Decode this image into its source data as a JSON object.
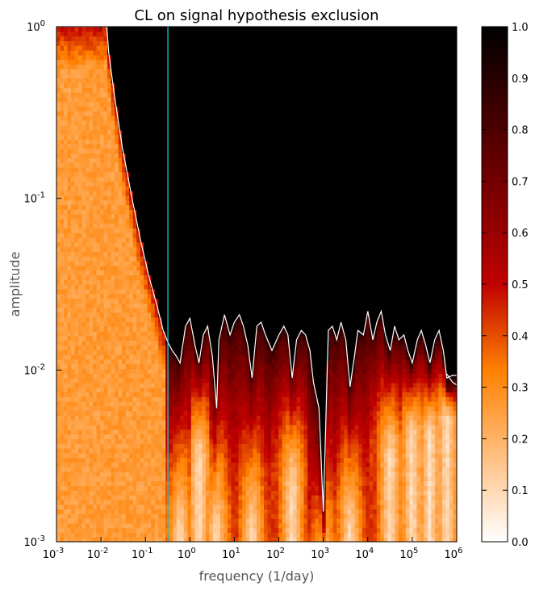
{
  "chart_data": {
    "type": "heatmap",
    "title": "CL on signal hypothesis exclusion",
    "xlabel": "frequency (1/day)",
    "ylabel": "amplitude",
    "x_scale": "log",
    "y_scale": "log",
    "xlim": [
      0.001,
      1000000
    ],
    "ylim": [
      0.001,
      1
    ],
    "x_ticks": [
      {
        "base": "10",
        "exp": "-3"
      },
      {
        "base": "10",
        "exp": "-2"
      },
      {
        "base": "10",
        "exp": "-1"
      },
      {
        "base": "10",
        "exp": "0"
      },
      {
        "base": "10",
        "exp": "1"
      },
      {
        "base": "10",
        "exp": "2"
      },
      {
        "base": "10",
        "exp": "3"
      },
      {
        "base": "10",
        "exp": "4"
      },
      {
        "base": "10",
        "exp": "5"
      },
      {
        "base": "10",
        "exp": "6"
      }
    ],
    "y_ticks": [
      {
        "base": "10",
        "exp": "-3"
      },
      {
        "base": "10",
        "exp": "-2"
      },
      {
        "base": "10",
        "exp": "-1"
      },
      {
        "base": "10",
        "exp": "0"
      }
    ],
    "colorbar": {
      "range": [
        0,
        1
      ],
      "tick_labels": [
        "0.0",
        "0.1",
        "0.2",
        "0.3",
        "0.4",
        "0.5",
        "0.6",
        "0.7",
        "0.8",
        "0.9",
        "1.0"
      ],
      "colormap": [
        "#ffffff",
        "#ffbf80",
        "#ff8000",
        "#c00000",
        "#800000",
        "#400000",
        "#000000"
      ]
    },
    "vertical_line": {
      "x": 0.32,
      "color": "#00e5e5"
    },
    "contour_color": "#ffffff",
    "contour_upper": [
      [
        0.001,
        1.0
      ],
      [
        0.0135,
        1.0
      ],
      [
        0.015,
        0.7
      ],
      [
        0.02,
        0.4
      ],
      [
        0.03,
        0.2
      ],
      [
        0.05,
        0.1
      ],
      [
        0.08,
        0.055
      ],
      [
        0.12,
        0.035
      ],
      [
        0.18,
        0.024
      ],
      [
        0.25,
        0.017
      ],
      [
        0.32,
        0.0145
      ],
      [
        0.4,
        0.013
      ],
      [
        0.5,
        0.012
      ],
      [
        0.6,
        0.011
      ],
      [
        0.8,
        0.018
      ],
      [
        1.0,
        0.02
      ],
      [
        1.3,
        0.014
      ],
      [
        1.6,
        0.011
      ],
      [
        2.0,
        0.016
      ],
      [
        2.5,
        0.018
      ],
      [
        3.2,
        0.012
      ],
      [
        4.0,
        0.006
      ],
      [
        4.5,
        0.015
      ],
      [
        6,
        0.021
      ],
      [
        8,
        0.016
      ],
      [
        10,
        0.019
      ],
      [
        13,
        0.021
      ],
      [
        16,
        0.018
      ],
      [
        20,
        0.014
      ],
      [
        25,
        0.009
      ],
      [
        32,
        0.018
      ],
      [
        40,
        0.019
      ],
      [
        50,
        0.016
      ],
      [
        70,
        0.013
      ],
      [
        100,
        0.016
      ],
      [
        130,
        0.018
      ],
      [
        160,
        0.016
      ],
      [
        200,
        0.009
      ],
      [
        250,
        0.015
      ],
      [
        320,
        0.017
      ],
      [
        400,
        0.016
      ],
      [
        500,
        0.013
      ],
      [
        600,
        0.0085
      ],
      [
        800,
        0.006
      ],
      [
        1000,
        0.0015
      ],
      [
        1300,
        0.017
      ],
      [
        1600,
        0.018
      ],
      [
        2000,
        0.015
      ],
      [
        2500,
        0.019
      ],
      [
        3200,
        0.015
      ],
      [
        4000,
        0.008
      ],
      [
        5000,
        0.012
      ],
      [
        6000,
        0.017
      ],
      [
        8000,
        0.016
      ],
      [
        10000,
        0.022
      ],
      [
        13000,
        0.015
      ],
      [
        16000,
        0.019
      ],
      [
        20000,
        0.022
      ],
      [
        25000,
        0.016
      ],
      [
        32000,
        0.013
      ],
      [
        40000,
        0.018
      ],
      [
        50000,
        0.015
      ],
      [
        65000,
        0.016
      ],
      [
        80000,
        0.013
      ],
      [
        100000,
        0.011
      ],
      [
        130000,
        0.015
      ],
      [
        160000,
        0.017
      ],
      [
        200000,
        0.014
      ],
      [
        250000,
        0.011
      ],
      [
        320000,
        0.015
      ],
      [
        400000,
        0.017
      ],
      [
        500000,
        0.013
      ],
      [
        600000,
        0.009
      ],
      [
        800000,
        0.0093
      ],
      [
        1000000,
        0.0093
      ]
    ],
    "contour_lower": [
      [
        600000,
        0.0095
      ],
      [
        800000,
        0.0085
      ],
      [
        1000000,
        0.0082
      ]
    ],
    "minima": [
      [
        0.6,
        0.001
      ],
      [
        1.6,
        0.003
      ],
      [
        4.0,
        0.001
      ],
      [
        25,
        0.001
      ],
      [
        200,
        0.002
      ],
      [
        1000,
        0.0005
      ],
      [
        4000,
        0.001
      ],
      [
        32000,
        0.003
      ],
      [
        100000,
        0.004
      ],
      [
        250000,
        0.004
      ],
      [
        600000,
        0.005
      ]
    ]
  }
}
